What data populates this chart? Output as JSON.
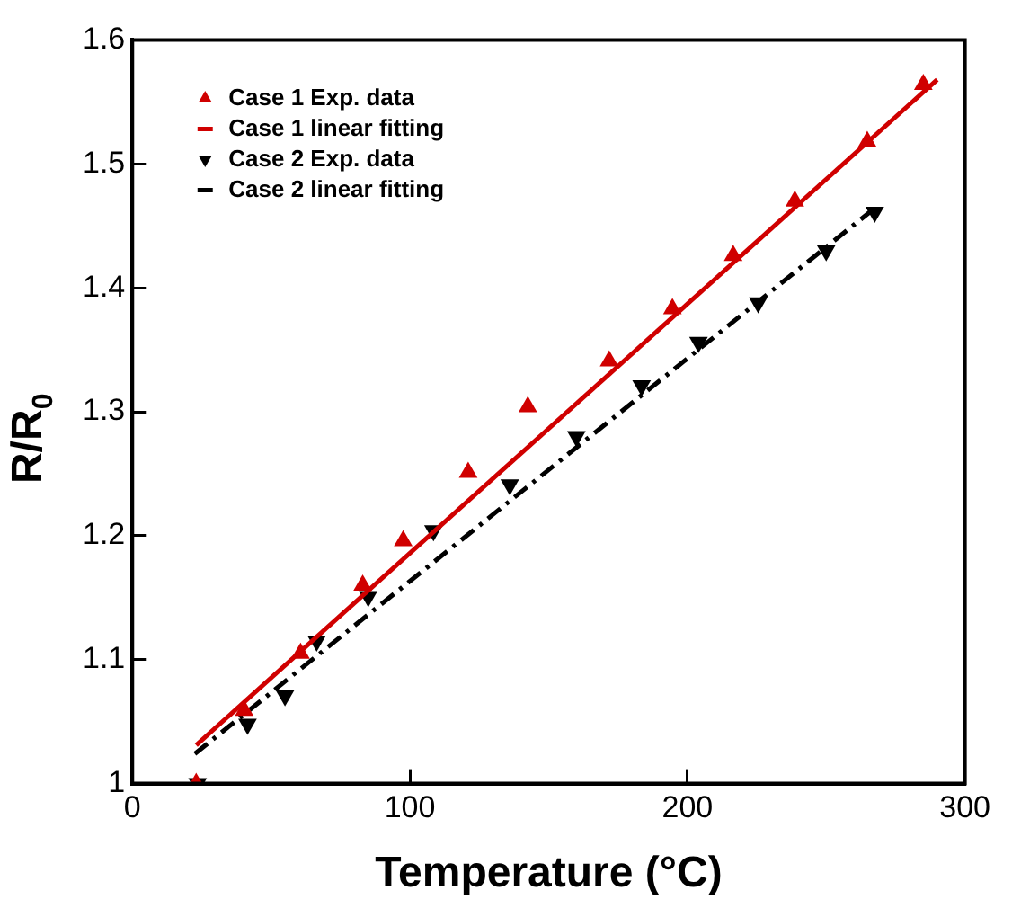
{
  "chart_data": {
    "type": "scatter",
    "xlabel": "Temperature (°C)",
    "ylabel": "R/R$_{0}$",
    "xlim": [
      0,
      300
    ],
    "xticks": [
      0,
      100,
      200,
      300
    ],
    "ylim": [
      1,
      1.6
    ],
    "yticks": [
      1,
      1.1,
      1.2,
      1.3,
      1.4,
      1.5,
      1.6
    ],
    "grid": false,
    "legend": "top left",
    "series": [
      {
        "name": "Case 1 Exp. data",
        "type": "scatter",
        "marker": "triangle",
        "color": "#d00000",
        "x": [
          23,
          40.3,
          60.6,
          83,
          97.6,
          121,
          142.5,
          171.8,
          194.6,
          216.5,
          238.7,
          264.8,
          285
        ],
        "values": [
          1.0,
          1.059,
          1.105,
          1.16,
          1.196,
          1.251,
          1.304,
          1.341,
          1.383,
          1.426,
          1.47,
          1.518,
          1.564
        ]
      },
      {
        "name": "Case 1 linear fitting",
        "type": "line",
        "line_style": "solid",
        "marker": "none",
        "color": "#d00000",
        "x": [
          23,
          290
        ],
        "values": [
          1.031,
          1.568
        ]
      },
      {
        "name": "Case 2 Exp. data",
        "type": "scatter",
        "marker": "triangle-down",
        "color": "#000000",
        "x": [
          23.5,
          41.5,
          55,
          66.4,
          85,
          108.5,
          136,
          160,
          183.5,
          204,
          225.5,
          250,
          267.5
        ],
        "values": [
          1.0,
          1.048,
          1.071,
          1.115,
          1.151,
          1.204,
          1.241,
          1.28,
          1.321,
          1.356,
          1.388,
          1.43,
          1.461
        ]
      },
      {
        "name": "Case 2 linear fitting",
        "type": "line",
        "line_style": "dashed",
        "marker": "none",
        "color": "#000000",
        "x": [
          22.5,
          269
        ],
        "values": [
          1.024,
          1.467
        ]
      }
    ]
  }
}
